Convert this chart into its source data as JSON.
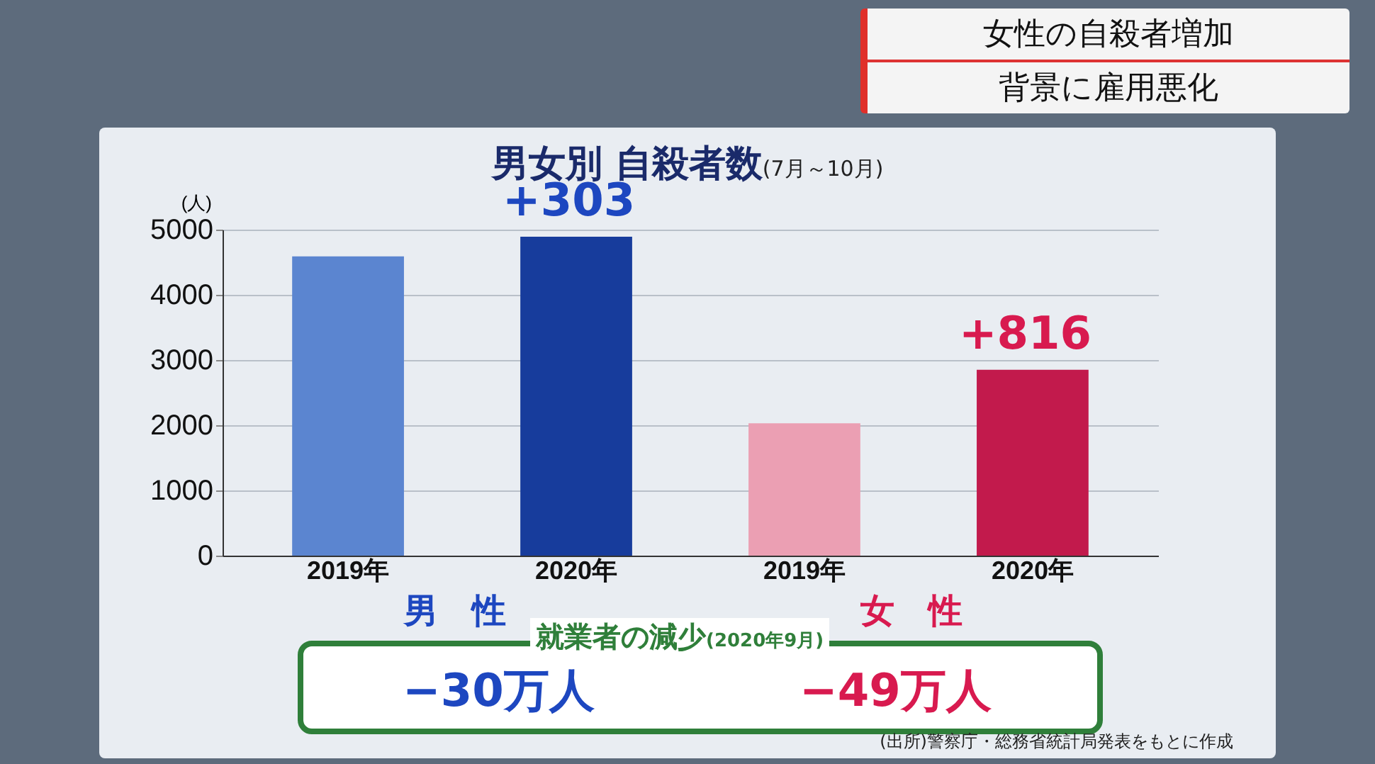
{
  "chart_data": {
    "type": "bar",
    "title": "男女別 自殺者数",
    "subtitle": "(7月～10月)",
    "ylabel": "(人)",
    "categories": [
      "2019年",
      "2020年",
      "2019年",
      "2020年"
    ],
    "values": [
      4590,
      4890,
      2030,
      2850
    ],
    "colors": [
      "#5b85d0",
      "#173c9c",
      "#eb9fb3",
      "#c21a4c"
    ],
    "ylim": [
      0,
      5000
    ],
    "yticks": [
      0,
      1000,
      2000,
      3000,
      4000,
      5000
    ],
    "grid": "y",
    "annotations": [
      "女性の自殺者増加",
      "背景に雇用悪化",
      "+303",
      "+816",
      "男　性",
      "女　性",
      "就業者の減少",
      "(2020年9月)",
      "−30万人",
      "−49万人",
      "(出所)警察庁・総務省統計局発表をもとに作成"
    ]
  }
}
